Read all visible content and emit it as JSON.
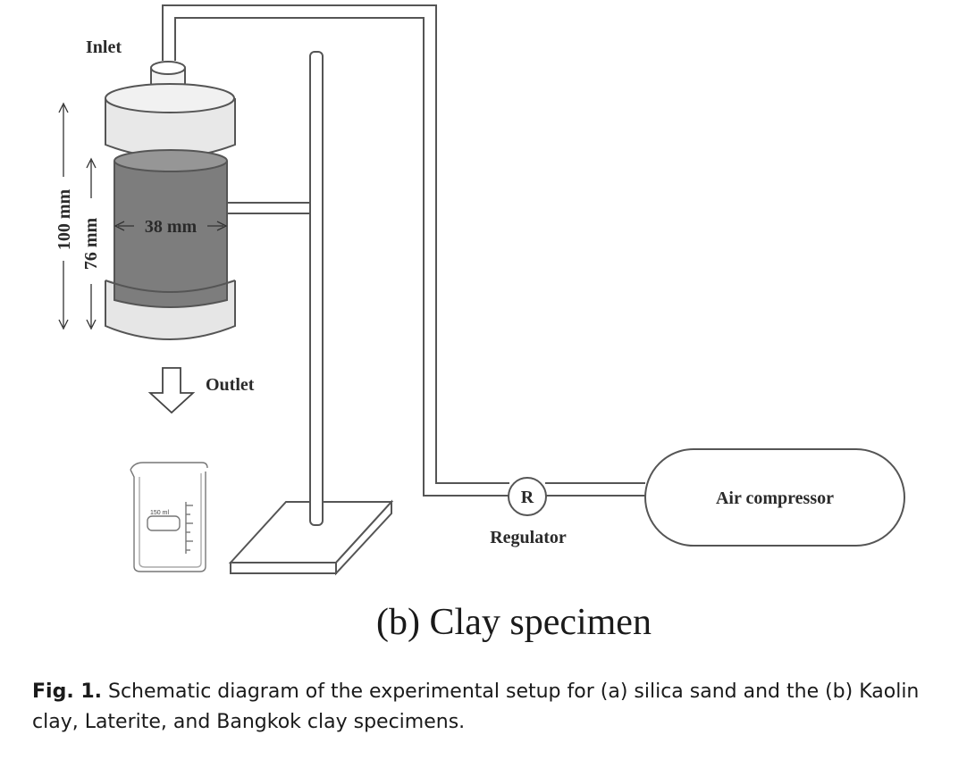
{
  "labels": {
    "inlet": "Inlet",
    "outlet": "Outlet",
    "regulator_symbol": "R",
    "regulator": "Regulator",
    "compressor": "Air compressor",
    "beaker_volume": "150 ml"
  },
  "dimensions": {
    "total_height": "100 mm",
    "specimen_height": "76 mm",
    "diameter": "38 mm"
  },
  "subcaption": "(b) Clay specimen",
  "caption": {
    "prefix": "Fig. 1.",
    "text": "Schematic diagram of the experimental setup for (a) silica sand and the (b) Kaolin clay, Laterite, and Bangkok clay specimens."
  },
  "colors": {
    "line": "#555555",
    "specimen_fill": "#7d7d7d",
    "cap_fill": "#e4e4e4",
    "background": "#ffffff"
  }
}
